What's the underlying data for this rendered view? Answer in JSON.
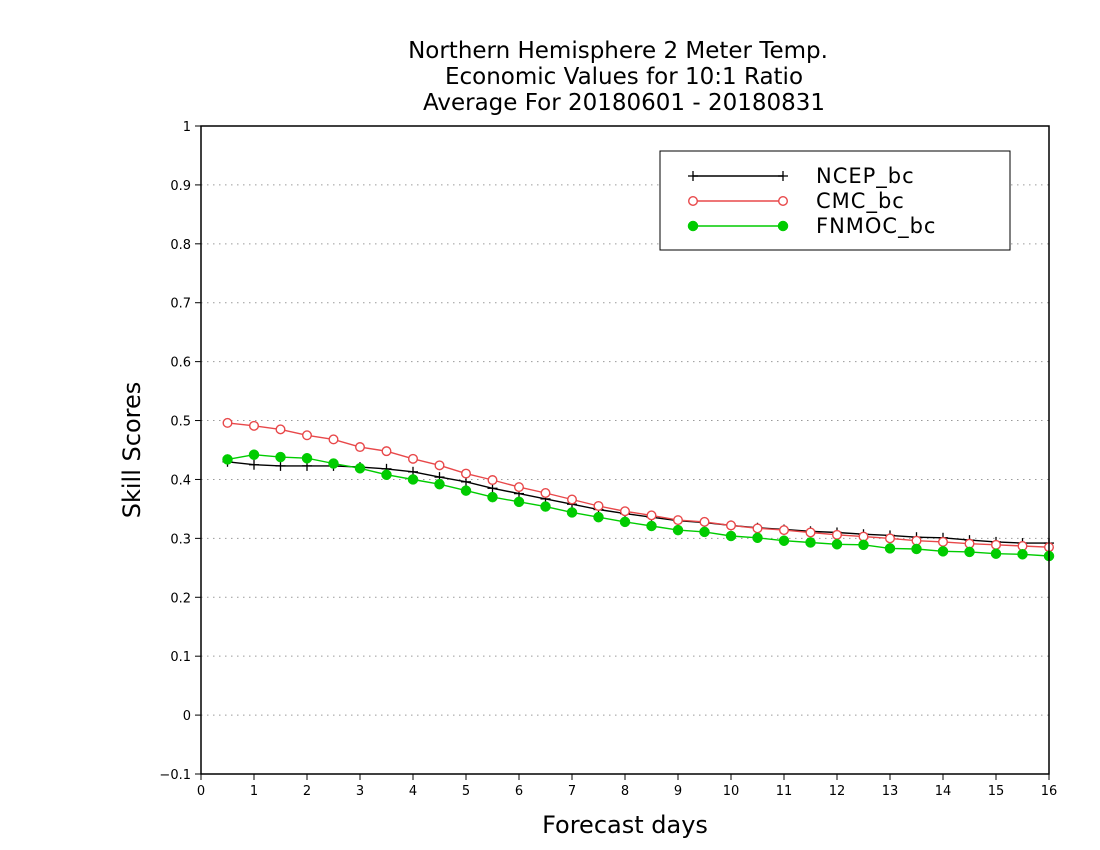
{
  "chart_data": {
    "type": "line",
    "title_lines": [
      "Northern Hemisphere 2 Meter Temp.",
      "Economic Values for 10:1 Ratio",
      "Average For 20180601 - 20180831"
    ],
    "xlabel": "Forecast days",
    "ylabel": "Skill Scores",
    "xlim": [
      0,
      16
    ],
    "ylim": [
      -0.1,
      1
    ],
    "xticks": [
      "0",
      "1",
      "2",
      "3",
      "4",
      "5",
      "6",
      "7",
      "8",
      "9",
      "10",
      "11",
      "12",
      "13",
      "14",
      "15",
      "16"
    ],
    "yticks": [
      "−0.1",
      "0",
      "0.1",
      "0.2",
      "0.3",
      "0.4",
      "0.5",
      "0.6",
      "0.7",
      "0.8",
      "0.9",
      "1"
    ],
    "grid": true,
    "legend_position": "top-right",
    "x": [
      0.5,
      1,
      1.5,
      2,
      2.5,
      3,
      3.5,
      4,
      4.5,
      5,
      5.5,
      6,
      6.5,
      7,
      7.5,
      8,
      8.5,
      9,
      9.5,
      10,
      10.5,
      11,
      11.5,
      12,
      12.5,
      13,
      13.5,
      14,
      14.5,
      15,
      15.5,
      16
    ],
    "series": [
      {
        "name": "NCEP_bc",
        "color": "#000000",
        "marker": "plus",
        "values": [
          0.43,
          0.425,
          0.423,
          0.423,
          0.423,
          0.421,
          0.418,
          0.413,
          0.404,
          0.396,
          0.385,
          0.376,
          0.367,
          0.358,
          0.349,
          0.342,
          0.336,
          0.33,
          0.327,
          0.322,
          0.318,
          0.315,
          0.312,
          0.31,
          0.307,
          0.305,
          0.302,
          0.301,
          0.297,
          0.294,
          0.292,
          0.292
        ]
      },
      {
        "name": "CMC_bc",
        "color": "#e8484a",
        "marker": "open-circle",
        "values": [
          0.496,
          0.491,
          0.485,
          0.475,
          0.468,
          0.455,
          0.448,
          0.435,
          0.424,
          0.41,
          0.399,
          0.387,
          0.377,
          0.366,
          0.355,
          0.346,
          0.339,
          0.331,
          0.328,
          0.322,
          0.317,
          0.314,
          0.31,
          0.306,
          0.303,
          0.3,
          0.296,
          0.294,
          0.291,
          0.289,
          0.287,
          0.285
        ]
      },
      {
        "name": "FNMOC_bc",
        "color": "#00cc00",
        "marker": "filled-circle",
        "values": [
          0.434,
          0.442,
          0.438,
          0.436,
          0.427,
          0.419,
          0.408,
          0.4,
          0.392,
          0.381,
          0.37,
          0.362,
          0.354,
          0.344,
          0.336,
          0.328,
          0.321,
          0.314,
          0.311,
          0.304,
          0.301,
          0.296,
          0.293,
          0.29,
          0.289,
          0.283,
          0.282,
          0.278,
          0.277,
          0.274,
          0.273,
          0.27
        ]
      }
    ]
  }
}
